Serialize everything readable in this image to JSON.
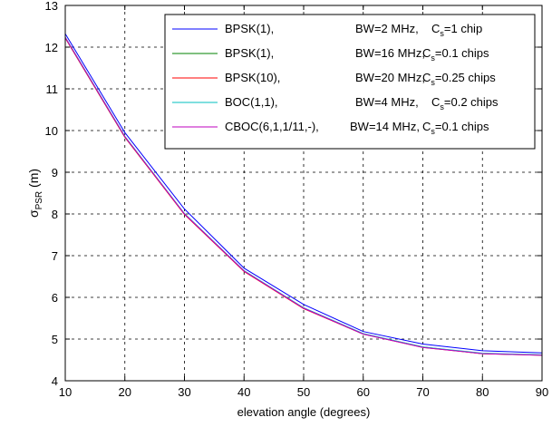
{
  "chart_data": {
    "type": "line",
    "xlabel": "elevation angle (degrees)",
    "ylabel": {
      "base": "σ",
      "sub": "PSR",
      "suffix": " (m)"
    },
    "xlim": [
      10,
      90
    ],
    "ylim": [
      4,
      13
    ],
    "xticks": [
      "10",
      "20",
      "30",
      "40",
      "50",
      "60",
      "70",
      "80",
      "90"
    ],
    "yticks": [
      "4",
      "5",
      "6",
      "7",
      "8",
      "9",
      "10",
      "11",
      "12",
      "13"
    ],
    "grid": true,
    "legend_position": "top-right",
    "x": [
      10,
      20,
      30,
      40,
      50,
      60,
      70,
      80,
      90
    ],
    "series": [
      {
        "label": {
          "sig": "BPSK(1),",
          "bw": "BW=2 MHz,",
          "cs": "=1 chip"
        },
        "color": "#0000ff",
        "values": [
          12.32,
          9.95,
          8.12,
          6.7,
          5.83,
          5.18,
          4.88,
          4.72,
          4.67
        ]
      },
      {
        "label": {
          "sig": "BPSK(1),",
          "bw": "BW=16 MHz,",
          "cs": "=0.1 chips"
        },
        "color": "#008000",
        "values": [
          12.22,
          9.84,
          8.0,
          6.63,
          5.74,
          5.12,
          4.81,
          4.65,
          4.62
        ]
      },
      {
        "label": {
          "sig": "BPSK(10),",
          "bw": "BW=20 MHz,",
          "cs": "=0.25 chips"
        },
        "color": "#ff0000",
        "values": [
          12.22,
          9.84,
          7.99,
          6.62,
          5.73,
          5.12,
          4.8,
          4.65,
          4.61
        ]
      },
      {
        "label": {
          "sig": "BOC(1,1),",
          "bw": "BW=4 MHz,",
          "cs": "=0.2 chips"
        },
        "color": "#00bfbf",
        "values": [
          12.24,
          9.86,
          8.01,
          6.64,
          5.75,
          5.13,
          4.81,
          4.66,
          4.62
        ]
      },
      {
        "label": {
          "sig": "CBOC(6,1,1/11,-),",
          "bw": "BW=14 MHz,",
          "cs": "=0.1 chips"
        },
        "color": "#bf00bf",
        "values": [
          12.23,
          9.85,
          8.0,
          6.63,
          5.74,
          5.12,
          4.8,
          4.65,
          4.61
        ]
      }
    ],
    "legend_cs_symbol": "C",
    "legend_cs_sub": "s"
  }
}
